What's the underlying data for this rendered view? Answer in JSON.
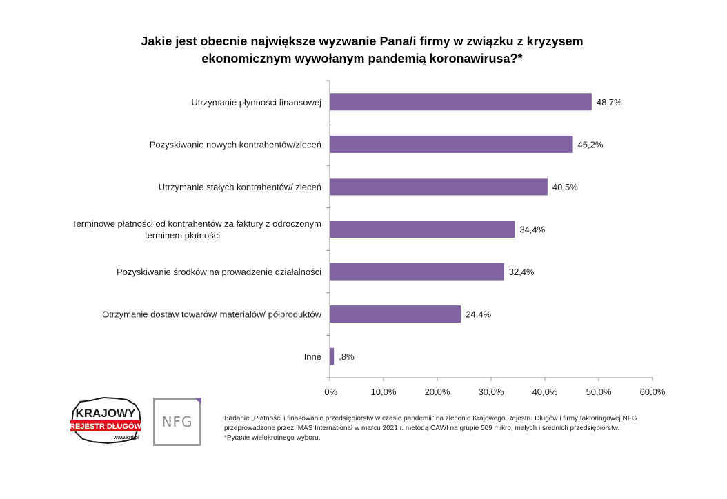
{
  "chart_data": {
    "type": "bar",
    "orientation": "horizontal",
    "title": "Jakie jest obecnie największe wyzwanie Pana/i firmy w związku z kryzysem ekonomicznym wywołanym pandemią koronawirusa?*",
    "categories": [
      "Utrzymanie płynności finansowej",
      "Pozyskiwanie nowych kontrahentów/zleceń",
      "Utrzymanie stałych kontrahentów/ zleceń",
      "Terminowe płatności od kontrahentów za faktury z odroczonym terminem płatności",
      "Pozyskiwanie środków na prowadzenie działalności",
      "Otrzymanie dostaw towarów/ materiałów/ półproduktów",
      "Inne"
    ],
    "category_lines": [
      [
        "Utrzymanie płynności finansowej"
      ],
      [
        "Pozyskiwanie nowych kontrahentów/zleceń"
      ],
      [
        "Utrzymanie stałych kontrahentów/ zleceń"
      ],
      [
        "Terminowe płatności od kontrahentów za faktury z odroczonym",
        "terminem płatności"
      ],
      [
        "Pozyskiwanie środków na prowadzenie działalności"
      ],
      [
        "Otrzymanie dostaw towarów/ materiałów/ półproduktów"
      ],
      [
        "Inne"
      ]
    ],
    "values": [
      48.7,
      45.2,
      40.5,
      34.4,
      32.4,
      24.4,
      0.8
    ],
    "value_labels": [
      "48,7%",
      "45,2%",
      "40,5%",
      "34,4%",
      "32,4%",
      "24,4%",
      ",8%"
    ],
    "xlim": [
      0,
      60
    ],
    "x_ticks": [
      0,
      10,
      20,
      30,
      40,
      50,
      60
    ],
    "x_tick_labels": [
      ",0%",
      "10,0%",
      "20,0%",
      "30,0%",
      "40,0%",
      "50,0%",
      "60,0%"
    ],
    "xlabel": "",
    "ylabel": "",
    "grid": false,
    "legend": "none",
    "bar_color": "#8064a2"
  },
  "logos": {
    "krd": {
      "word1": "KRAJOWY",
      "word2": "REJESTR DŁUGÓW",
      "url": "www.krd.pl",
      "colors": {
        "red": "#d7141a",
        "dark": "#1a1a1a"
      }
    },
    "nfg": {
      "text": "NFG"
    }
  },
  "footnote": "Badanie „Płatności i finasowanie przedsiębiorstw w czasie pandemii” na zlecenie Krajowego Rejestru Długów i firmy faktoringowej NFG przeprowadzone przez IMAS International w marcu 2021 r. metodą CAWI na grupie 509 mikro, małych i średnich przedsiębiorstw. *Pytanie wielokrotnego wyboru."
}
